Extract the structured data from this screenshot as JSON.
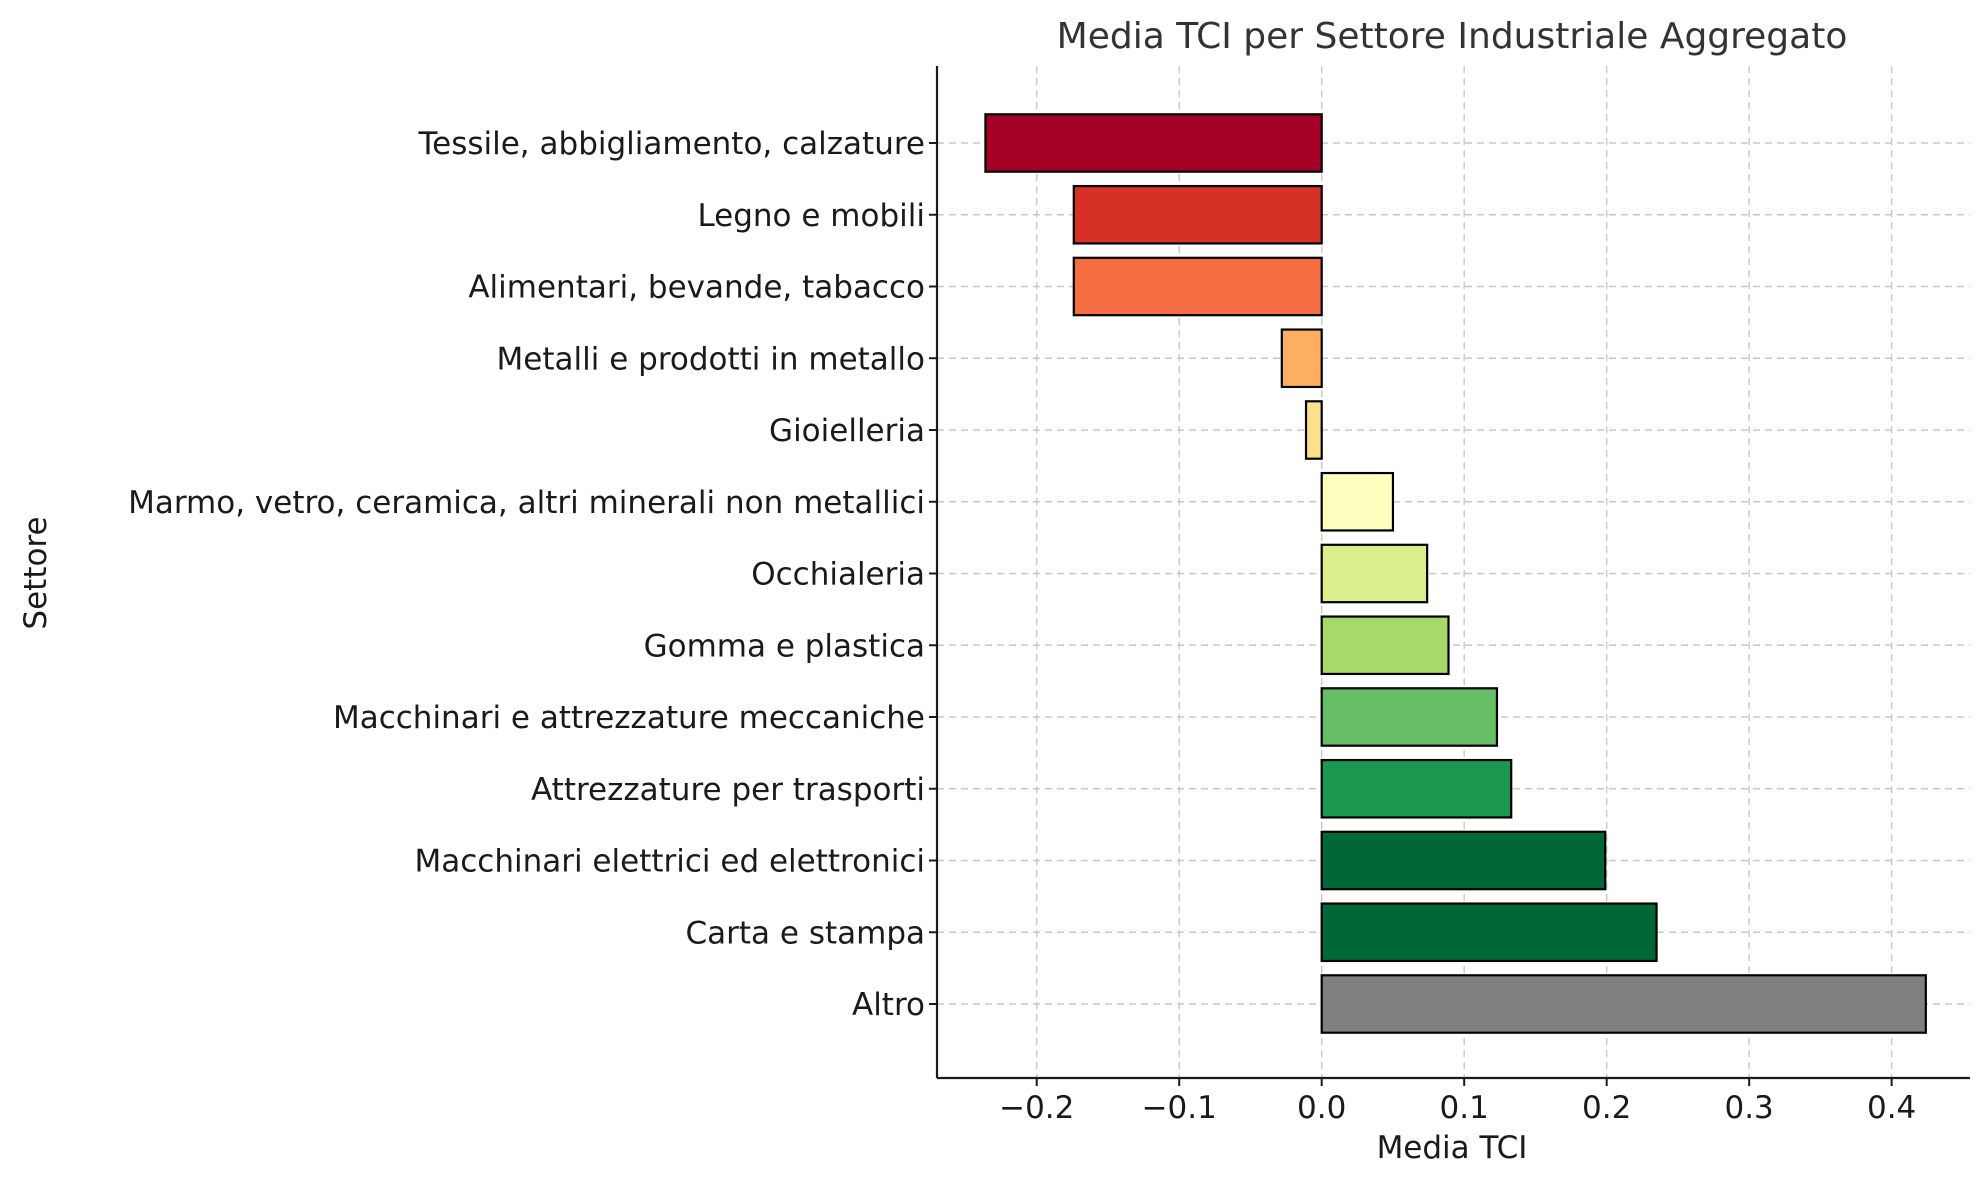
{
  "chart_data": {
    "type": "bar",
    "orientation": "horizontal",
    "title": "Media TCI per Settore Industriale Aggregato",
    "xlabel": "Media TCI",
    "ylabel": "Settore",
    "xlim": [
      -0.27,
      0.455
    ],
    "xticks": [
      -0.2,
      -0.1,
      0.0,
      0.1,
      0.2,
      0.3,
      0.4
    ],
    "xtick_labels": [
      "−0.2",
      "−0.1",
      "0.0",
      "0.1",
      "0.2",
      "0.3",
      "0.4"
    ],
    "grid": true,
    "categories": [
      "Tessile, abbigliamento, calzature",
      "Legno e mobili",
      "Alimentari, bevande, tabacco",
      "Metalli e prodotti in metallo",
      "Gioielleria",
      "Marmo, vetro, ceramica, altri minerali non metallici",
      "Occhialeria",
      "Gomma e plastica",
      "Macchinari e attrezzature meccaniche",
      "Attrezzature per trasporti",
      "Macchinari elettrici ed elettronici",
      "Carta e stampa",
      "Altro"
    ],
    "values": [
      -0.236,
      -0.174,
      -0.174,
      -0.028,
      -0.011,
      0.05,
      0.074,
      0.089,
      0.123,
      0.133,
      0.199,
      0.235,
      0.424
    ],
    "colors": [
      "#a50026",
      "#d73027",
      "#f46d43",
      "#fdae61",
      "#fee08b",
      "#ffffbf",
      "#d9ef8b",
      "#a6d96a",
      "#66bd63",
      "#1a9850",
      "#006837",
      "#006837",
      "#808080"
    ]
  }
}
